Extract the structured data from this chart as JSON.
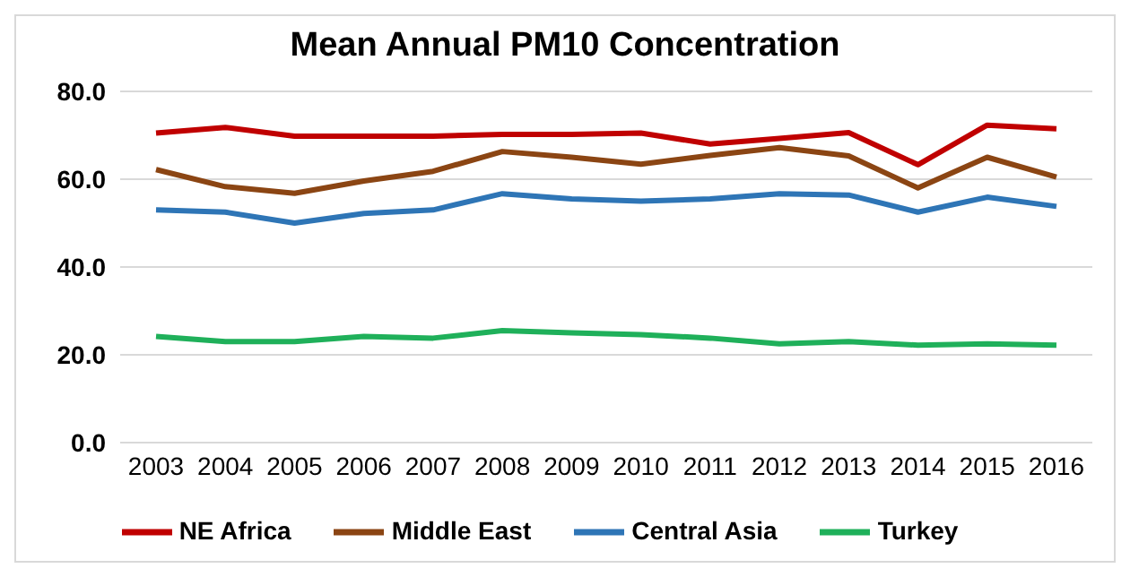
{
  "chart_data": {
    "type": "line",
    "title": "Mean Annual PM10 Concentration",
    "categories": [
      "2003",
      "2004",
      "2005",
      "2006",
      "2007",
      "2008",
      "2009",
      "2010",
      "2011",
      "2012",
      "2013",
      "2014",
      "2015",
      "2016"
    ],
    "series": [
      {
        "name": "NE Africa",
        "color": "#c00000",
        "values": [
          70.5,
          71.8,
          69.8,
          69.8,
          69.8,
          70.2,
          70.2,
          70.5,
          68,
          69.3,
          70.6,
          63.3,
          72.3,
          71.5
        ]
      },
      {
        "name": "Middle East",
        "color": "#8b4513",
        "values": [
          62.2,
          58.3,
          56.8,
          59.6,
          61.8,
          66.3,
          65,
          63.4,
          65.4,
          67.2,
          65.3,
          58,
          65,
          60.5
        ]
      },
      {
        "name": "Central Asia",
        "color": "#2e75b6",
        "values": [
          53,
          52.5,
          50,
          52.2,
          53,
          56.7,
          55.5,
          55,
          55.5,
          56.7,
          56.4,
          52.5,
          55.9,
          53.8
        ]
      },
      {
        "name": "Turkey",
        "color": "#1fb05a",
        "values": [
          24.2,
          23,
          23,
          24.2,
          23.8,
          25.5,
          25,
          24.6,
          23.8,
          22.5,
          23,
          22.2,
          22.5,
          22.2
        ]
      }
    ],
    "ylim": [
      0,
      80
    ],
    "yticks": [
      {
        "value": 0,
        "label": "0.0"
      },
      {
        "value": 20,
        "label": "20.0"
      },
      {
        "value": 40,
        "label": "40.0"
      },
      {
        "value": 60,
        "label": "60.0"
      },
      {
        "value": 80,
        "label": "80.0"
      }
    ],
    "grid": "y",
    "legend": "bottom",
    "marker": "none",
    "line_style": "solid"
  }
}
